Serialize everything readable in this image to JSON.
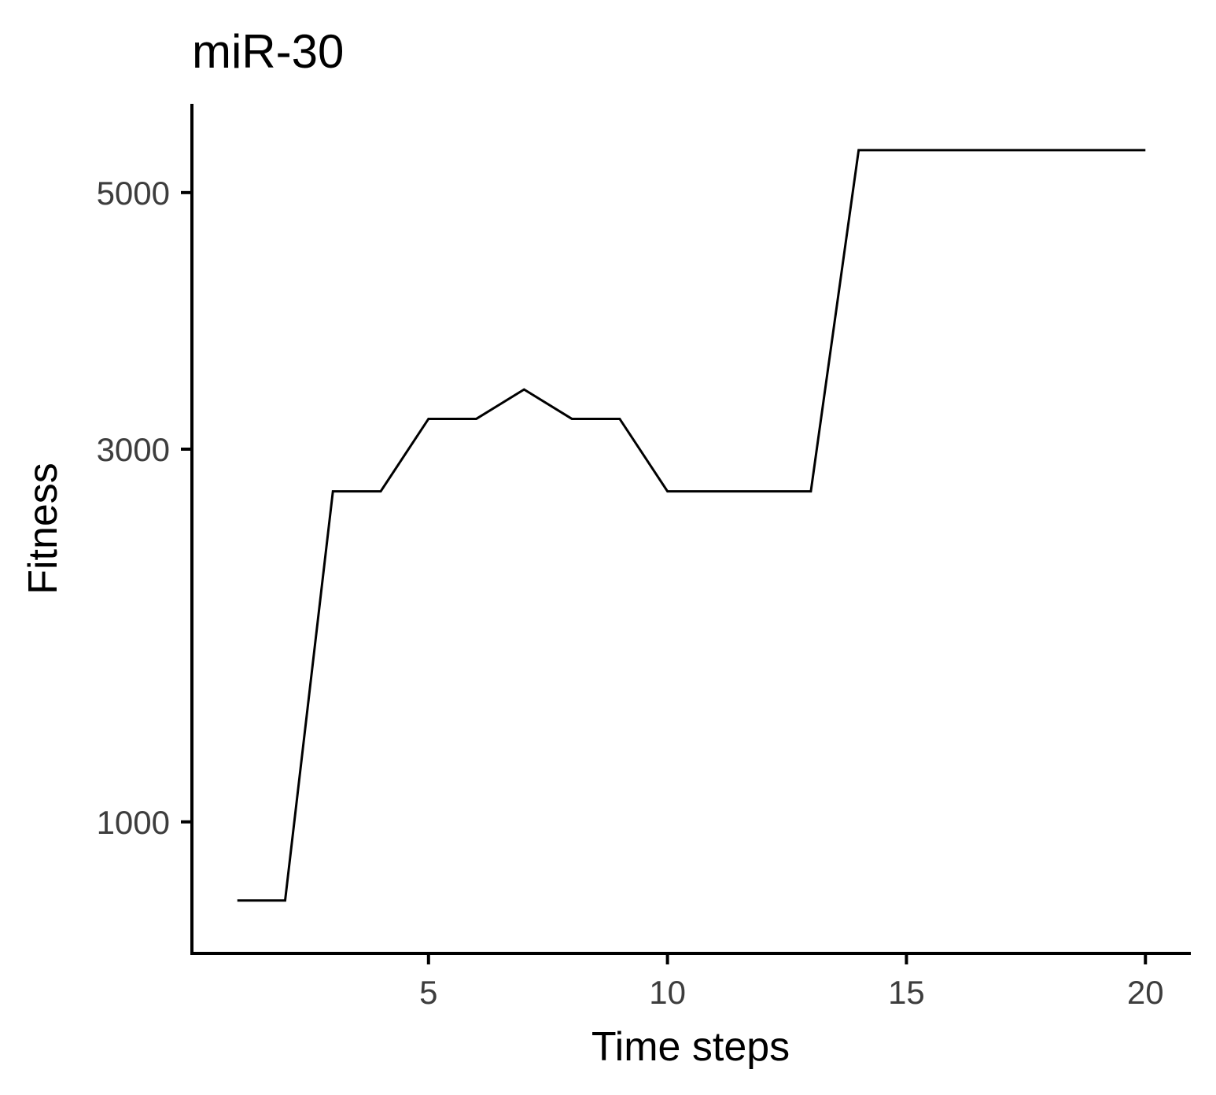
{
  "chart_data": {
    "type": "line",
    "title": "miR-30",
    "xlabel": "Time steps",
    "ylabel": "Fitness",
    "x": [
      1,
      2,
      3,
      4,
      5,
      6,
      7,
      8,
      9,
      10,
      11,
      12,
      13,
      14,
      15,
      16,
      17,
      18,
      19,
      20
    ],
    "series": [
      {
        "values": [
          715,
          715,
          2720,
          2720,
          3210,
          3210,
          3420,
          3210,
          3210,
          2720,
          2720,
          2720,
          2720,
          5380,
          5380,
          5380,
          5380,
          5380,
          5380,
          5380
        ]
      }
    ],
    "xticks": [
      5,
      10,
      15,
      20
    ],
    "xtick_labels": [
      "5",
      "10",
      "15",
      "20"
    ],
    "yticks": [
      1000,
      3000,
      5000
    ],
    "ytick_labels": [
      "1000",
      "3000",
      "5000"
    ],
    "xlim": [
      0.05,
      20.95
    ],
    "ylim": [
      550,
      5810
    ],
    "y_scale": "sqrt",
    "grid": false,
    "legend": "none",
    "line_color": "#000000"
  }
}
